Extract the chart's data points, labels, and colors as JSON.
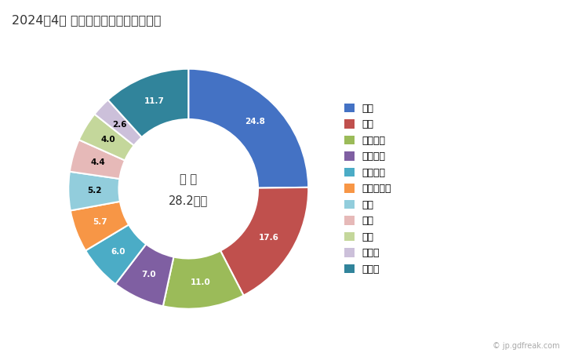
{
  "title": "2024年4月 輸出相手国のシェア（％）",
  "center_label_line1": "総 額",
  "center_label_line2": "28.2億円",
  "categories": [
    "米国",
    "中国",
    "オランダ",
    "スペイン",
    "フランス",
    "マレーシア",
    "韓国",
    "香港",
    "英国",
    "チェコ",
    "その他"
  ],
  "values": [
    24.8,
    17.6,
    11.0,
    7.0,
    6.0,
    5.7,
    5.2,
    4.4,
    4.0,
    2.6,
    11.7
  ],
  "donut_colors": [
    "#4472C4",
    "#C0504D",
    "#9BBB59",
    "#7F5FA2",
    "#4BACC6",
    "#F79646",
    "#92CDDC",
    "#E6B9B8",
    "#C4D79B",
    "#CCC0DA",
    "#31849B"
  ],
  "legend_colors": [
    "#4472C4",
    "#C0504D",
    "#9BBB59",
    "#7F5FA2",
    "#4BACC6",
    "#F79646",
    "#92CDDC",
    "#E6B9B8",
    "#C4D79B",
    "#CCC0DA",
    "#31849B"
  ],
  "label_text_colors": [
    "white",
    "white",
    "white",
    "white",
    "white",
    "white",
    "black",
    "black",
    "black",
    "black",
    "white"
  ],
  "watermark": "© jp.gdfreak.com",
  "background_color": "#ffffff"
}
